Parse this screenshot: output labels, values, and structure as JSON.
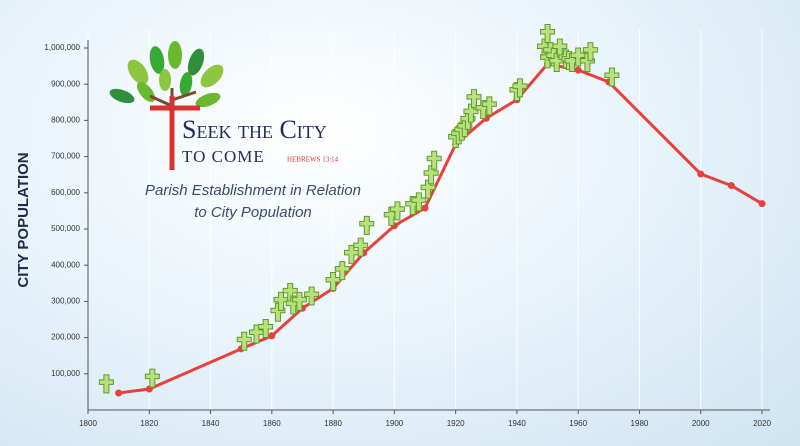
{
  "logo": {
    "line1": "Seek the City",
    "line2": "to come",
    "reference": "Hebrews 13:14"
  },
  "chart_data": {
    "type": "line",
    "title": "Parish Establishment in Relation to City Population",
    "y_label": "CITY POPULATION",
    "xlim": [
      1800,
      2020
    ],
    "xticks": [
      1800,
      1820,
      1840,
      1860,
      1880,
      1900,
      1920,
      1940,
      1960,
      1980,
      2000,
      2020
    ],
    "ylim": [
      0,
      1000000
    ],
    "yticks": [
      {
        "value": 100000,
        "label": "100,000"
      },
      {
        "value": 200000,
        "label": "200,000"
      },
      {
        "value": 300000,
        "label": "300,000"
      },
      {
        "value": 400000,
        "label": "400,000"
      },
      {
        "value": 500000,
        "label": "500,000"
      },
      {
        "value": 600000,
        "label": "600,000"
      },
      {
        "value": 700000,
        "label": "700,000"
      },
      {
        "value": 800000,
        "label": "800,000"
      },
      {
        "value": 900000,
        "label": "900,000"
      },
      {
        "value": 1000000,
        "label": "1,000,000"
      }
    ],
    "grid": true,
    "series": [
      {
        "type": "line",
        "color": "#e8403c",
        "x": [
          1810,
          1820,
          1850,
          1860,
          1870,
          1880,
          1890,
          1900,
          1910,
          1920,
          1930,
          1940,
          1950,
          1960,
          1970,
          2000,
          2010,
          2020
        ],
        "values": [
          47000,
          58000,
          169000,
          205000,
          281000,
          336000,
          434000,
          509000,
          558000,
          734000,
          806000,
          857000,
          956000,
          939000,
          906000,
          652000,
          620000,
          570000
        ]
      },
      {
        "type": "scatter",
        "color": "#b8e07c",
        "x": [
          1806,
          1821,
          1851,
          1855,
          1858,
          1862,
          1863,
          1866,
          1867,
          1869,
          1873,
          1880,
          1883,
          1886,
          1889,
          1891,
          1899,
          1901,
          1906,
          1908,
          1911,
          1912,
          1913,
          1920,
          1921,
          1922,
          1923,
          1924,
          1925,
          1926,
          1929,
          1931,
          1940,
          1941,
          1949,
          1950,
          1950,
          1951,
          1952,
          1953,
          1954,
          1956,
          1957,
          1958,
          1960,
          1963,
          1964,
          1971
        ],
        "values": [
          72000,
          88000,
          190000,
          210000,
          225000,
          270000,
          300000,
          325000,
          290000,
          300000,
          315000,
          355000,
          385000,
          430000,
          450000,
          510000,
          535000,
          550000,
          565000,
          575000,
          610000,
          650000,
          690000,
          750000,
          760000,
          770000,
          780000,
          800000,
          820000,
          860000,
          830000,
          840000,
          880000,
          890000,
          1000000,
          1040000,
          970000,
          990000,
          975000,
          960000,
          1000000,
          970000,
          965000,
          960000,
          975000,
          960000,
          990000,
          920000
        ]
      }
    ]
  }
}
